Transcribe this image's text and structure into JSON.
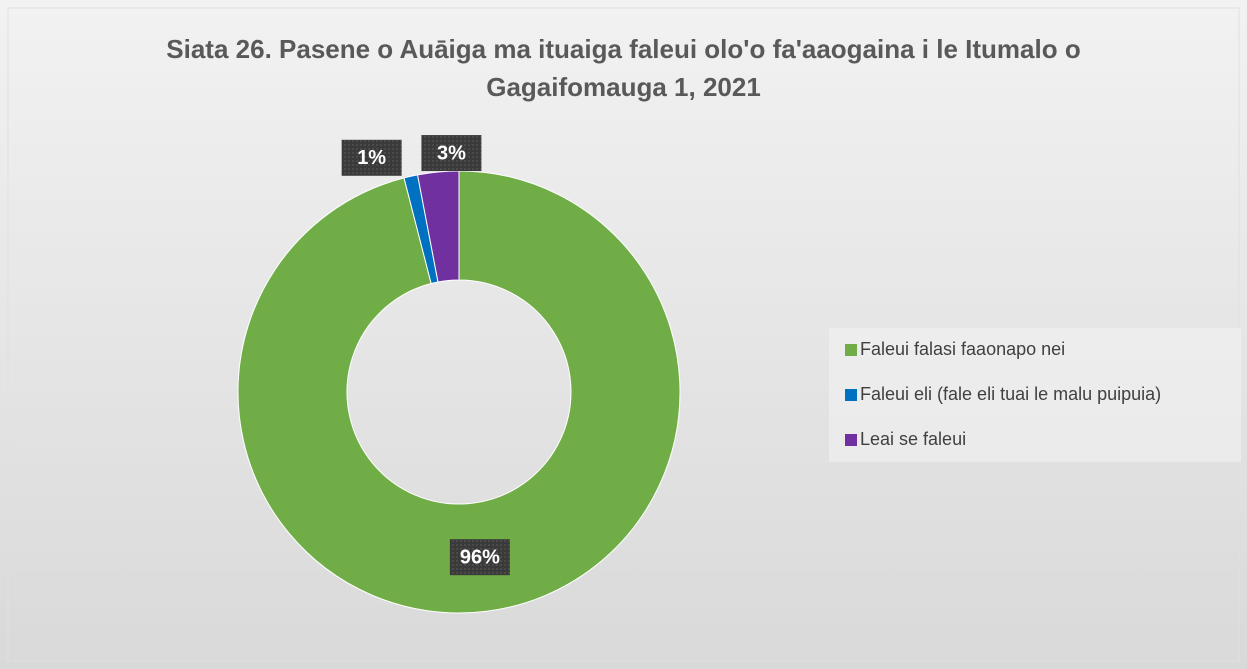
{
  "chart_data": {
    "type": "donut",
    "title": "Siata 26. Pasene o Auāiga ma ituaiga faleui olo'o fa'aaogaina i le Itumalo o Gagaifomauga 1, 2021",
    "categories": [
      "Faleui falasi faaonapo nei",
      "Faleui eli (fale eli tuai le malu puipuia)",
      "Leai se faleui"
    ],
    "values": [
      96,
      1,
      3
    ],
    "value_labels": [
      "96%",
      "1%",
      "3%"
    ],
    "colors": [
      "#70ad47",
      "#0070c0",
      "#7030a0"
    ],
    "legend": "right"
  }
}
